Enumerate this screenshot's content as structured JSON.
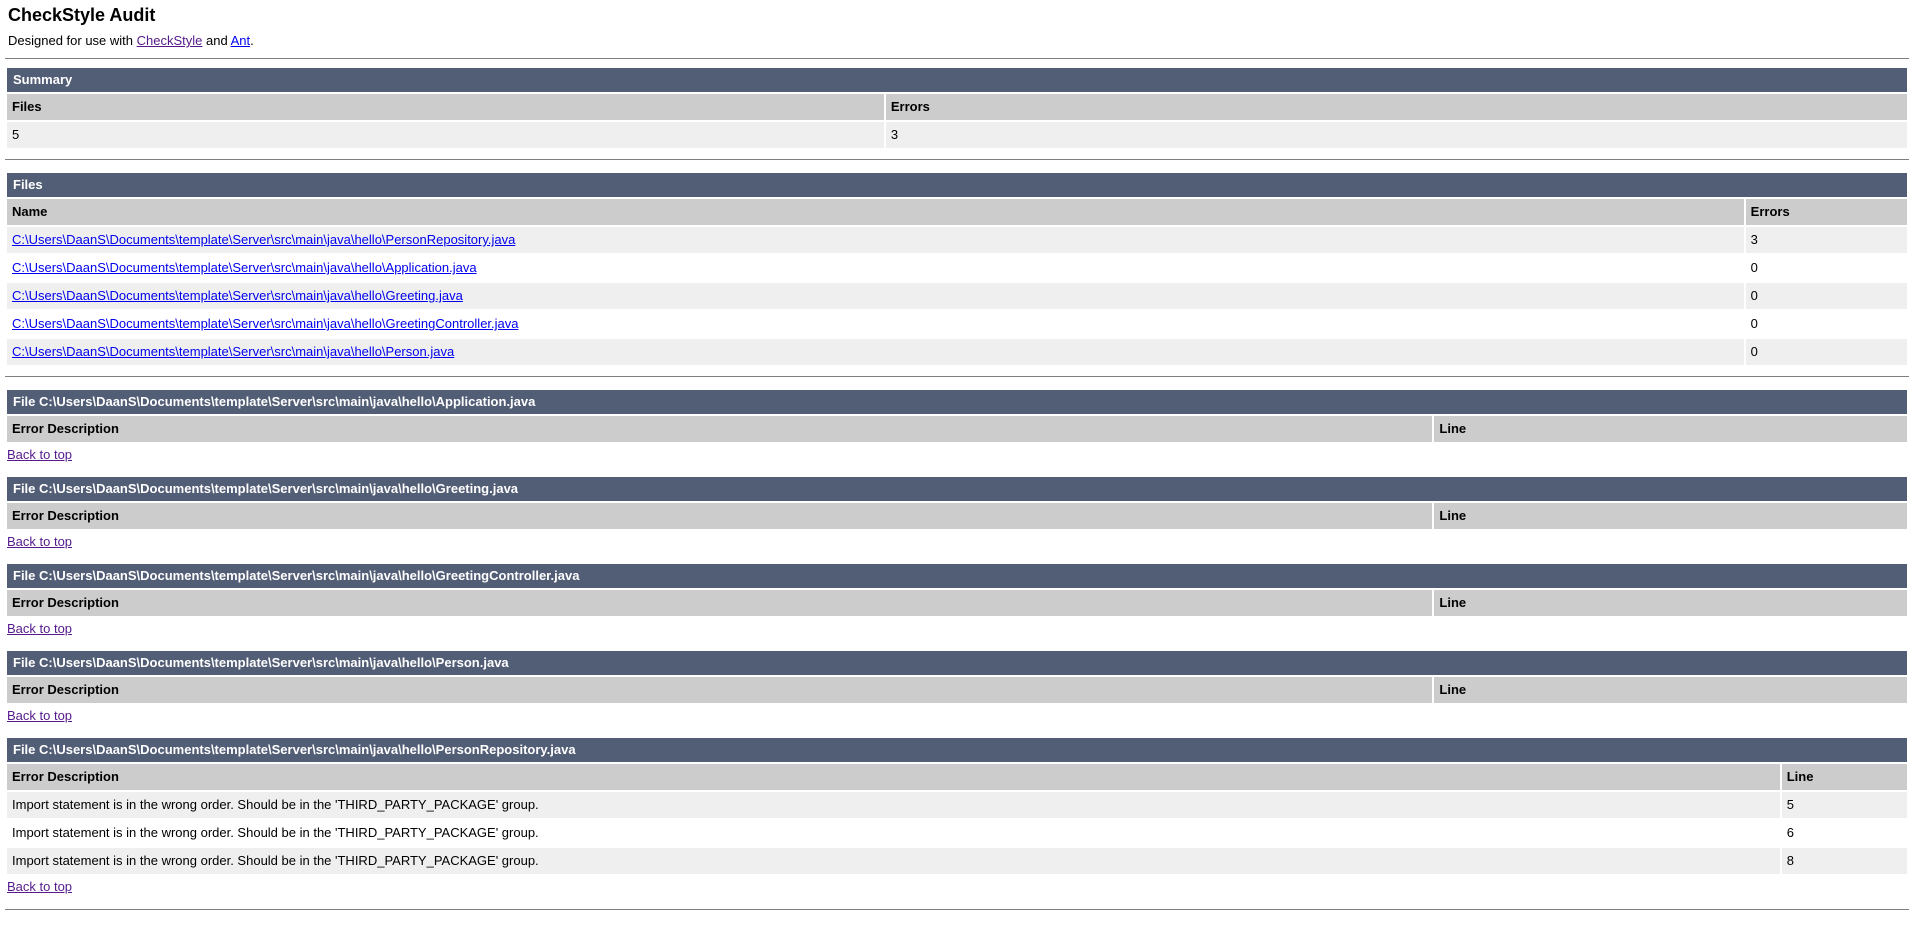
{
  "header": {
    "title": "CheckStyle Audit",
    "subtitle_prefix": "Designed for use with ",
    "checkstyle_link": "CheckStyle",
    "subtitle_mid": " and ",
    "ant_link": "Ant",
    "subtitle_suffix": "."
  },
  "colors": {
    "band_background": "#525D76",
    "header_cell_background": "#cccccc",
    "odd_row_background": "#efefef",
    "even_row_background": "#ffffff",
    "link_blue": "#0000EE",
    "link_visited_purple": "#551A8B"
  },
  "summary": {
    "heading": "Summary",
    "columns": [
      "Files",
      "Errors"
    ],
    "files_count": "5",
    "errors_count": "3"
  },
  "files_table": {
    "heading": "Files",
    "columns": [
      "Name",
      "Errors"
    ],
    "rows": [
      {
        "name": "C:\\Users\\DaanS\\Documents\\template\\Server\\src\\main\\java\\hello\\PersonRepository.java",
        "errors": "3"
      },
      {
        "name": "C:\\Users\\DaanS\\Documents\\template\\Server\\src\\main\\java\\hello\\Application.java",
        "errors": "0"
      },
      {
        "name": "C:\\Users\\DaanS\\Documents\\template\\Server\\src\\main\\java\\hello\\Greeting.java",
        "errors": "0"
      },
      {
        "name": "C:\\Users\\DaanS\\Documents\\template\\Server\\src\\main\\java\\hello\\GreetingController.java",
        "errors": "0"
      },
      {
        "name": "C:\\Users\\DaanS\\Documents\\template\\Server\\src\\main\\java\\hello\\Person.java",
        "errors": "0"
      }
    ]
  },
  "back_to_top_label": "Back to top",
  "sections": [
    {
      "title": "File C:\\Users\\DaanS\\Documents\\template\\Server\\src\\main\\java\\hello\\Application.java",
      "columns": [
        "Error Description",
        "Line"
      ],
      "rows": []
    },
    {
      "title": "File C:\\Users\\DaanS\\Documents\\template\\Server\\src\\main\\java\\hello\\Greeting.java",
      "columns": [
        "Error Description",
        "Line"
      ],
      "rows": []
    },
    {
      "title": "File C:\\Users\\DaanS\\Documents\\template\\Server\\src\\main\\java\\hello\\GreetingController.java",
      "columns": [
        "Error Description",
        "Line"
      ],
      "rows": []
    },
    {
      "title": "File C:\\Users\\DaanS\\Documents\\template\\Server\\src\\main\\java\\hello\\Person.java",
      "columns": [
        "Error Description",
        "Line"
      ],
      "rows": []
    },
    {
      "title": "File C:\\Users\\DaanS\\Documents\\template\\Server\\src\\main\\java\\hello\\PersonRepository.java",
      "columns": [
        "Error Description",
        "Line"
      ],
      "rows": [
        {
          "description": "Import statement is in the wrong order. Should be in the 'THIRD_PARTY_PACKAGE' group.",
          "line": "5"
        },
        {
          "description": "Import statement is in the wrong order. Should be in the 'THIRD_PARTY_PACKAGE' group.",
          "line": "6"
        },
        {
          "description": "Import statement is in the wrong order. Should be in the 'THIRD_PARTY_PACKAGE' group.",
          "line": "8"
        }
      ]
    }
  ]
}
